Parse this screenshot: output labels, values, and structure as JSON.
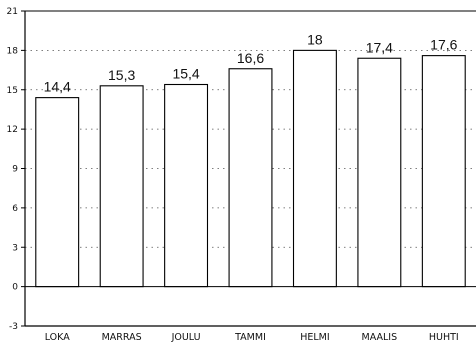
{
  "chart_data": {
    "type": "bar",
    "title": "",
    "xlabel": "",
    "ylabel": "",
    "categories": [
      "LOKA",
      "MARRAS",
      "JOULU",
      "TAMMI",
      "HELMI",
      "MAALIS",
      "HUHTI"
    ],
    "values": [
      14.4,
      15.3,
      15.4,
      16.6,
      18,
      17.4,
      17.6
    ],
    "value_labels": [
      "14,4",
      "15,3",
      "15,4",
      "16,6",
      "18",
      "17,4",
      "17,6"
    ],
    "ylim": [
      -3,
      21
    ],
    "yticks": [
      -3,
      0,
      3,
      6,
      9,
      12,
      15,
      18,
      21
    ],
    "grid": "dotted horizontal",
    "legend": "none",
    "colors": {
      "bar_fill": "#ffffff",
      "bar_stroke": "#000000",
      "grid": "#555555",
      "axis": "#000000"
    }
  }
}
